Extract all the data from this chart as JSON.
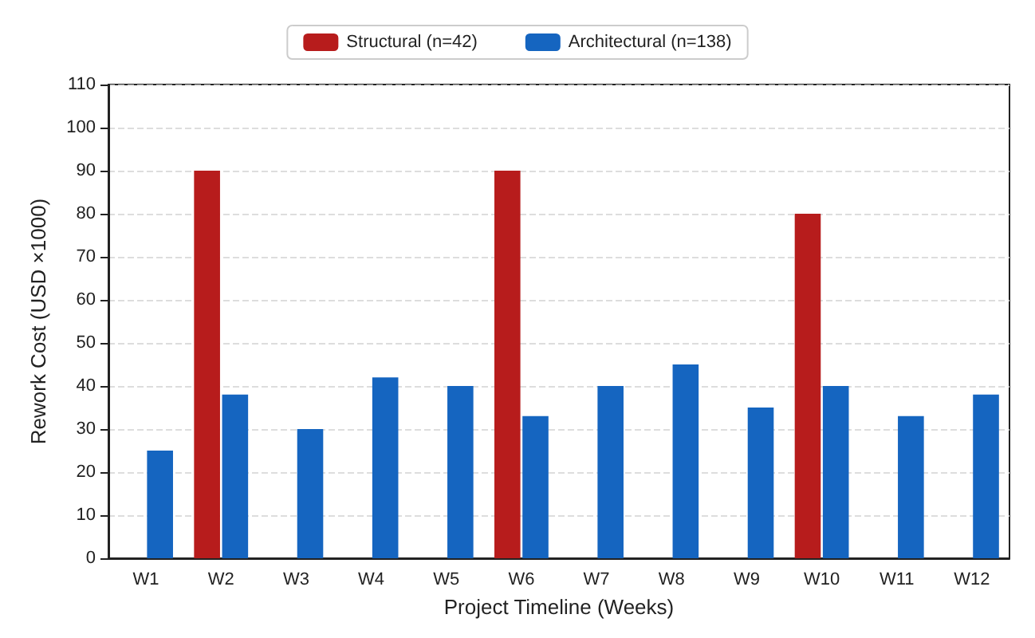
{
  "chart_data": {
    "type": "bar",
    "xlabel": "Project Timeline (Weeks)",
    "ylabel": "Rework Cost (USD ×1000)",
    "categories": [
      "W1",
      "W2",
      "W3",
      "W4",
      "W5",
      "W6",
      "W7",
      "W8",
      "W9",
      "W10",
      "W11",
      "W12"
    ],
    "series": [
      {
        "name": "Structural (n=42)",
        "color": "#b71c1c",
        "values": [
          null,
          90,
          null,
          null,
          null,
          90,
          null,
          null,
          null,
          80,
          null,
          null
        ]
      },
      {
        "name": "Architectural (n=138)",
        "color": "#1565c0",
        "values": [
          25,
          38,
          30,
          42,
          40,
          33,
          40,
          45,
          35,
          40,
          33,
          38
        ]
      }
    ],
    "ylim": [
      0,
      110
    ],
    "yticks": [
      0,
      10,
      20,
      30,
      40,
      50,
      60,
      70,
      80,
      90,
      100,
      110
    ],
    "grid": "y",
    "legend": "top"
  }
}
